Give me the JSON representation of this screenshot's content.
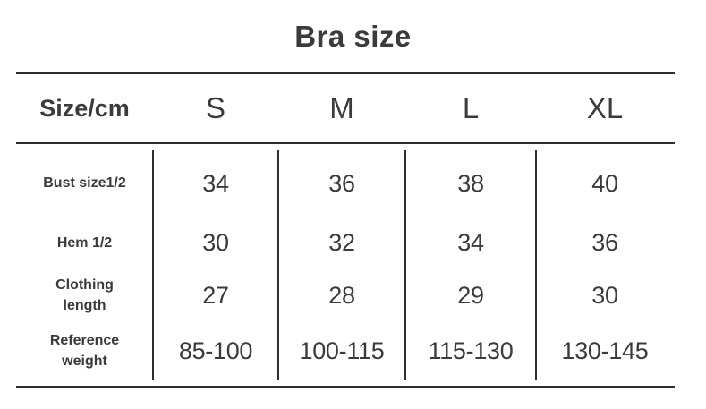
{
  "chart_data": {
    "type": "table",
    "title": "Bra size",
    "corner_label": "Size/cm",
    "columns": [
      "S",
      "M",
      "L",
      "XL"
    ],
    "rows": [
      {
        "label": "Bust size1/2",
        "display": "Bust size1/2",
        "values": [
          "34",
          "36",
          "38",
          "40"
        ]
      },
      {
        "label": "Hem 1/2",
        "display": "Hem 1/2",
        "values": [
          "30",
          "32",
          "34",
          "36"
        ]
      },
      {
        "label": "Clothing length",
        "display": "Clothing\nlength",
        "values": [
          "27",
          "28",
          "29",
          "30"
        ]
      },
      {
        "label": "Reference weight",
        "display": "Reference\nweight",
        "values": [
          "85-100",
          "100-115",
          "115-130",
          "130-145"
        ]
      }
    ],
    "layout": {
      "grid": "horizontal rules above/below header and at bottom; vertical dividers between columns in body only",
      "header_position": "top row"
    }
  },
  "colors": {
    "text": "#3b3b3b",
    "line": "#2d2d2d",
    "background": "#ffffff"
  }
}
